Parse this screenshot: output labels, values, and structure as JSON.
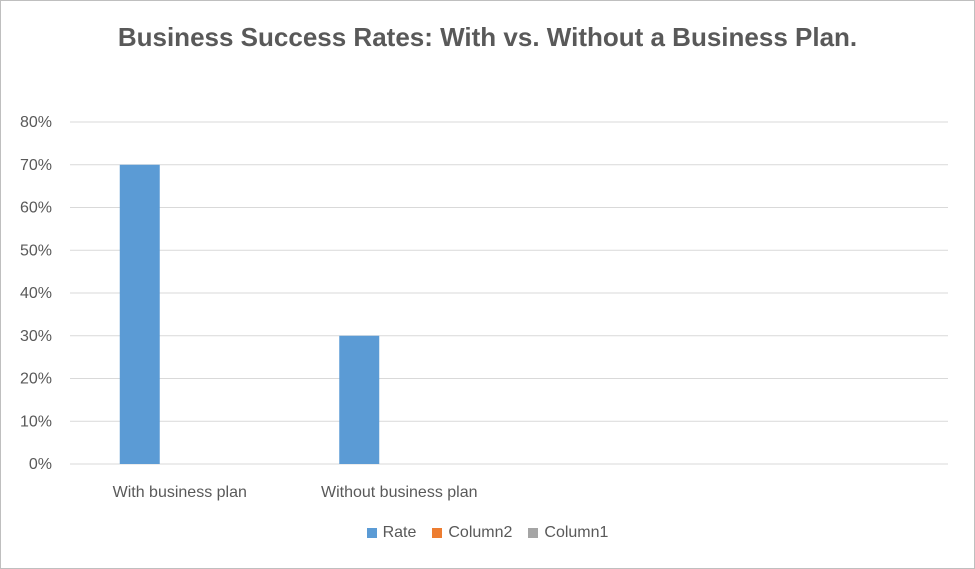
{
  "chart_data": {
    "type": "bar",
    "title": "Business Success Rates: With vs. Without a Business Plan.",
    "categories": [
      "With business plan",
      "Without business plan",
      "",
      ""
    ],
    "series": [
      {
        "name": "Rate",
        "color": "#5b9bd5",
        "values": [
          0.7,
          0.3,
          null,
          null
        ]
      },
      {
        "name": "Column2",
        "color": "#ed7d31",
        "values": [
          null,
          null,
          null,
          null
        ]
      },
      {
        "name": "Column1",
        "color": "#a5a5a5",
        "values": [
          null,
          null,
          null,
          null
        ]
      }
    ],
    "ylim": [
      0,
      0.8
    ],
    "yticks": [
      "0%",
      "10%",
      "20%",
      "30%",
      "40%",
      "50%",
      "60%",
      "70%",
      "80%"
    ],
    "grid": true,
    "legend_position": "bottom"
  }
}
